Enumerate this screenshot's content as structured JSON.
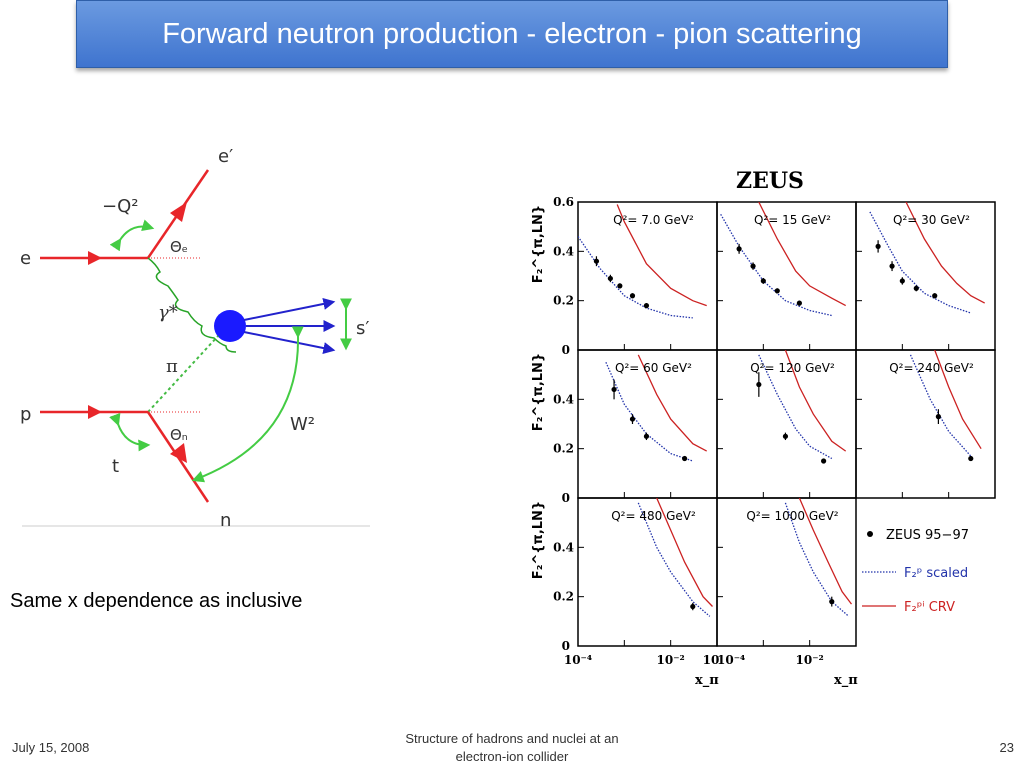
{
  "slide": {
    "title": "Forward neutron production - electron - pion scattering",
    "caption": "Same x dependence as inclusive",
    "footer_date": "July 15, 2008",
    "footer_center_line1": "Structure of hadrons and nuclei at an",
    "footer_center_line2": "electron-ion collider",
    "page_number": "23"
  },
  "diagram": {
    "labels": {
      "e_in": "e",
      "e_out": "e′",
      "q2": "−Q²",
      "theta_e": "Θₑ",
      "gamma": "γ*",
      "pi": "π",
      "p": "p",
      "t": "t",
      "theta_n": "Θₙ",
      "n": "n",
      "s_prime": "s′",
      "w2": "W²"
    },
    "colors": {
      "lepton": "#e8262a",
      "hadron_blob": "#1a1aff",
      "jets": "#2222cc",
      "arrows": "#44cc44",
      "photon": "#28a428",
      "pion": "#44bb44"
    }
  },
  "chart_data": {
    "type": "scatter",
    "title": "ZEUS",
    "ylabel": "F₂^{π,LN}",
    "xlabel": "x_π",
    "xscale": "log",
    "xlim": [
      0.0001,
      0.1
    ],
    "ylim": [
      0,
      0.6
    ],
    "y_ticks": [
      "0",
      "0.2",
      "0.4",
      "0.6"
    ],
    "x_ticks": [
      "10⁻⁴",
      "10⁻²",
      "10"
    ],
    "colors": {
      "data": "#000000",
      "f2p_scaled": "#2233aa",
      "f2pi_crv": "#cc2222"
    },
    "legend": {
      "position": "bottom-right",
      "entries": [
        {
          "label": "ZEUS 95−97",
          "style": "points"
        },
        {
          "label": "F₂ᵖ scaled",
          "style": "dotted"
        },
        {
          "label": "F₂ᵖⁱ CRV",
          "style": "solid"
        }
      ]
    },
    "panels": [
      {
        "label": "Q²= 7.0 GeV²",
        "points": [
          {
            "x": 0.00025,
            "y": 0.36,
            "err": 0.02
          },
          {
            "x": 0.0005,
            "y": 0.29,
            "err": 0.015
          },
          {
            "x": 0.0008,
            "y": 0.26,
            "err": 0.01
          },
          {
            "x": 0.0015,
            "y": 0.22,
            "err": 0.01
          },
          {
            "x": 0.003,
            "y": 0.18,
            "err": 0.01
          }
        ],
        "scaled": [
          {
            "x": 0.0001,
            "y": 0.46
          },
          {
            "x": 0.0003,
            "y": 0.33
          },
          {
            "x": 0.001,
            "y": 0.22
          },
          {
            "x": 0.003,
            "y": 0.17
          },
          {
            "x": 0.01,
            "y": 0.14
          },
          {
            "x": 0.03,
            "y": 0.13
          }
        ],
        "crv": [
          {
            "x": 0.0007,
            "y": 0.59
          },
          {
            "x": 0.001,
            "y": 0.52
          },
          {
            "x": 0.003,
            "y": 0.35
          },
          {
            "x": 0.01,
            "y": 0.25
          },
          {
            "x": 0.03,
            "y": 0.2
          },
          {
            "x": 0.06,
            "y": 0.18
          }
        ]
      },
      {
        "label": "Q²= 15 GeV²",
        "points": [
          {
            "x": 0.0003,
            "y": 0.41,
            "err": 0.02
          },
          {
            "x": 0.0006,
            "y": 0.34,
            "err": 0.015
          },
          {
            "x": 0.001,
            "y": 0.28,
            "err": 0.012
          },
          {
            "x": 0.002,
            "y": 0.24,
            "err": 0.01
          },
          {
            "x": 0.006,
            "y": 0.19,
            "err": 0.01
          }
        ],
        "scaled": [
          {
            "x": 0.00012,
            "y": 0.55
          },
          {
            "x": 0.0003,
            "y": 0.42
          },
          {
            "x": 0.001,
            "y": 0.28
          },
          {
            "x": 0.003,
            "y": 0.2
          },
          {
            "x": 0.01,
            "y": 0.16
          },
          {
            "x": 0.03,
            "y": 0.14
          }
        ],
        "crv": [
          {
            "x": 0.0008,
            "y": 0.6
          },
          {
            "x": 0.002,
            "y": 0.45
          },
          {
            "x": 0.005,
            "y": 0.32
          },
          {
            "x": 0.01,
            "y": 0.26
          },
          {
            "x": 0.03,
            "y": 0.21
          },
          {
            "x": 0.06,
            "y": 0.18
          }
        ]
      },
      {
        "label": "Q²= 30 GeV²",
        "points": [
          {
            "x": 0.0003,
            "y": 0.42,
            "err": 0.025
          },
          {
            "x": 0.0006,
            "y": 0.34,
            "err": 0.02
          },
          {
            "x": 0.001,
            "y": 0.28,
            "err": 0.015
          },
          {
            "x": 0.002,
            "y": 0.25,
            "err": 0.012
          },
          {
            "x": 0.005,
            "y": 0.22,
            "err": 0.01
          }
        ],
        "scaled": [
          {
            "x": 0.0002,
            "y": 0.56
          },
          {
            "x": 0.0005,
            "y": 0.42
          },
          {
            "x": 0.001,
            "y": 0.32
          },
          {
            "x": 0.003,
            "y": 0.23
          },
          {
            "x": 0.01,
            "y": 0.18
          },
          {
            "x": 0.03,
            "y": 0.15
          }
        ],
        "crv": [
          {
            "x": 0.0012,
            "y": 0.6
          },
          {
            "x": 0.003,
            "y": 0.45
          },
          {
            "x": 0.007,
            "y": 0.34
          },
          {
            "x": 0.015,
            "y": 0.27
          },
          {
            "x": 0.03,
            "y": 0.22
          },
          {
            "x": 0.06,
            "y": 0.19
          }
        ]
      },
      {
        "label": "Q²= 60 GeV²",
        "points": [
          {
            "x": 0.0006,
            "y": 0.44,
            "err": 0.04
          },
          {
            "x": 0.0015,
            "y": 0.32,
            "err": 0.02
          },
          {
            "x": 0.003,
            "y": 0.25,
            "err": 0.015
          },
          {
            "x": 0.02,
            "y": 0.16,
            "err": 0.01
          }
        ],
        "scaled": [
          {
            "x": 0.0004,
            "y": 0.55
          },
          {
            "x": 0.001,
            "y": 0.38
          },
          {
            "x": 0.003,
            "y": 0.26
          },
          {
            "x": 0.01,
            "y": 0.18
          },
          {
            "x": 0.03,
            "y": 0.15
          }
        ],
        "crv": [
          {
            "x": 0.002,
            "y": 0.58
          },
          {
            "x": 0.005,
            "y": 0.42
          },
          {
            "x": 0.01,
            "y": 0.32
          },
          {
            "x": 0.03,
            "y": 0.22
          },
          {
            "x": 0.06,
            "y": 0.19
          }
        ]
      },
      {
        "label": "Q²= 120 GeV²",
        "points": [
          {
            "x": 0.0008,
            "y": 0.46,
            "err": 0.05
          },
          {
            "x": 0.003,
            "y": 0.25,
            "err": 0.015
          },
          {
            "x": 0.02,
            "y": 0.15,
            "err": 0.01
          }
        ],
        "scaled": [
          {
            "x": 0.0008,
            "y": 0.58
          },
          {
            "x": 0.002,
            "y": 0.42
          },
          {
            "x": 0.005,
            "y": 0.28
          },
          {
            "x": 0.01,
            "y": 0.21
          },
          {
            "x": 0.03,
            "y": 0.16
          }
        ],
        "crv": [
          {
            "x": 0.003,
            "y": 0.6
          },
          {
            "x": 0.006,
            "y": 0.45
          },
          {
            "x": 0.012,
            "y": 0.34
          },
          {
            "x": 0.03,
            "y": 0.23
          },
          {
            "x": 0.06,
            "y": 0.19
          }
        ]
      },
      {
        "label": "Q²= 240 GeV²",
        "points": [
          {
            "x": 0.006,
            "y": 0.33,
            "err": 0.03
          },
          {
            "x": 0.03,
            "y": 0.16,
            "err": 0.01
          }
        ],
        "scaled": [
          {
            "x": 0.0015,
            "y": 0.58
          },
          {
            "x": 0.004,
            "y": 0.4
          },
          {
            "x": 0.01,
            "y": 0.27
          },
          {
            "x": 0.03,
            "y": 0.17
          }
        ],
        "crv": [
          {
            "x": 0.005,
            "y": 0.6
          },
          {
            "x": 0.01,
            "y": 0.45
          },
          {
            "x": 0.02,
            "y": 0.32
          },
          {
            "x": 0.05,
            "y": 0.2
          }
        ]
      },
      {
        "label": "Q²= 480 GeV²",
        "points": [
          {
            "x": 0.03,
            "y": 0.16,
            "err": 0.015
          }
        ],
        "scaled": [
          {
            "x": 0.002,
            "y": 0.58
          },
          {
            "x": 0.005,
            "y": 0.4
          },
          {
            "x": 0.01,
            "y": 0.3
          },
          {
            "x": 0.03,
            "y": 0.18
          },
          {
            "x": 0.07,
            "y": 0.12
          }
        ],
        "crv": [
          {
            "x": 0.005,
            "y": 0.6
          },
          {
            "x": 0.01,
            "y": 0.47
          },
          {
            "x": 0.02,
            "y": 0.34
          },
          {
            "x": 0.05,
            "y": 0.2
          },
          {
            "x": 0.08,
            "y": 0.16
          }
        ]
      },
      {
        "label": "Q²= 1000 GeV²",
        "points": [
          {
            "x": 0.03,
            "y": 0.18,
            "err": 0.02
          }
        ],
        "scaled": [
          {
            "x": 0.003,
            "y": 0.58
          },
          {
            "x": 0.006,
            "y": 0.42
          },
          {
            "x": 0.012,
            "y": 0.3
          },
          {
            "x": 0.03,
            "y": 0.18
          },
          {
            "x": 0.07,
            "y": 0.12
          }
        ],
        "crv": [
          {
            "x": 0.006,
            "y": 0.6
          },
          {
            "x": 0.012,
            "y": 0.47
          },
          {
            "x": 0.025,
            "y": 0.34
          },
          {
            "x": 0.05,
            "y": 0.22
          },
          {
            "x": 0.08,
            "y": 0.17
          }
        ]
      }
    ]
  }
}
